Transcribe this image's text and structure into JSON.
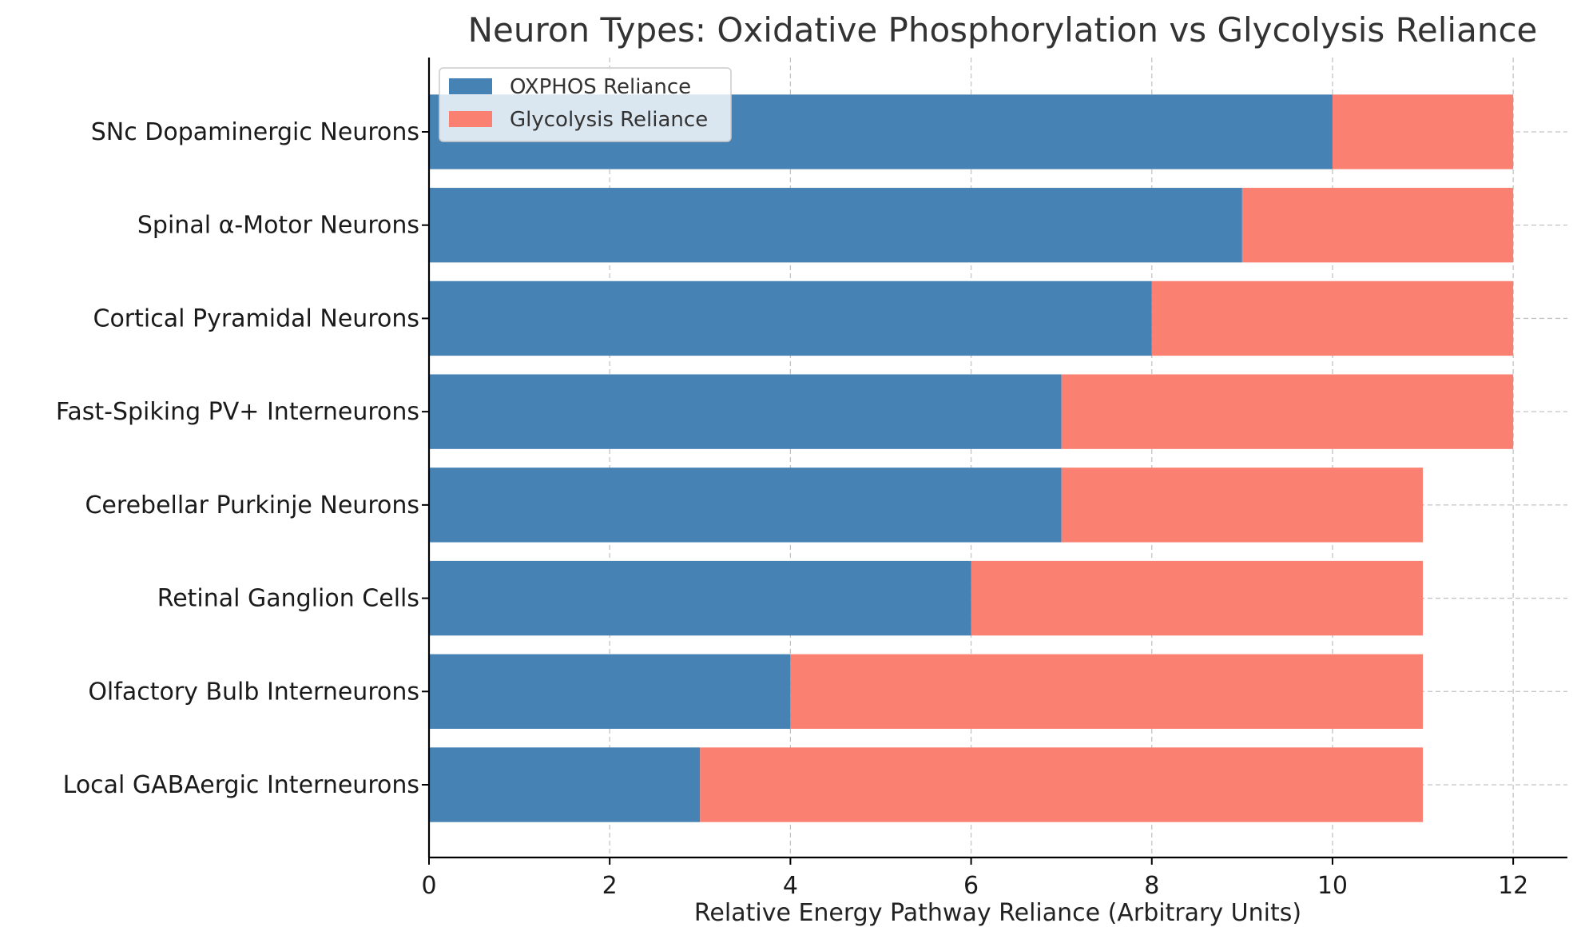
{
  "chart_data": {
    "type": "bar",
    "orientation": "horizontal",
    "stacked": true,
    "title": "Neuron Types: Oxidative Phosphorylation vs Glycolysis Reliance",
    "xlabel": "Relative Energy Pathway Reliance (Arbitrary Units)",
    "ylabel": "",
    "xlim": [
      0,
      12.6
    ],
    "xticks": [
      0,
      2,
      4,
      6,
      8,
      10,
      12
    ],
    "categories": [
      "SNc Dopaminergic Neurons",
      "Spinal α-Motor Neurons",
      "Cortical Pyramidal Neurons",
      "Fast-Spiking PV+ Interneurons",
      "Cerebellar Purkinje Neurons",
      "Retinal Ganglion Cells",
      "Olfactory Bulb Interneurons",
      "Local GABAergic Interneurons"
    ],
    "series": [
      {
        "name": "OXPHOS Reliance",
        "color": "#4682b4",
        "values": [
          10,
          9,
          8,
          7,
          7,
          6,
          4,
          3
        ]
      },
      {
        "name": "Glycolysis Reliance",
        "color": "#fa8072",
        "values": [
          2,
          3,
          4,
          5,
          4,
          5,
          7,
          8
        ]
      }
    ],
    "grid": true,
    "legend_position": "top-left"
  }
}
